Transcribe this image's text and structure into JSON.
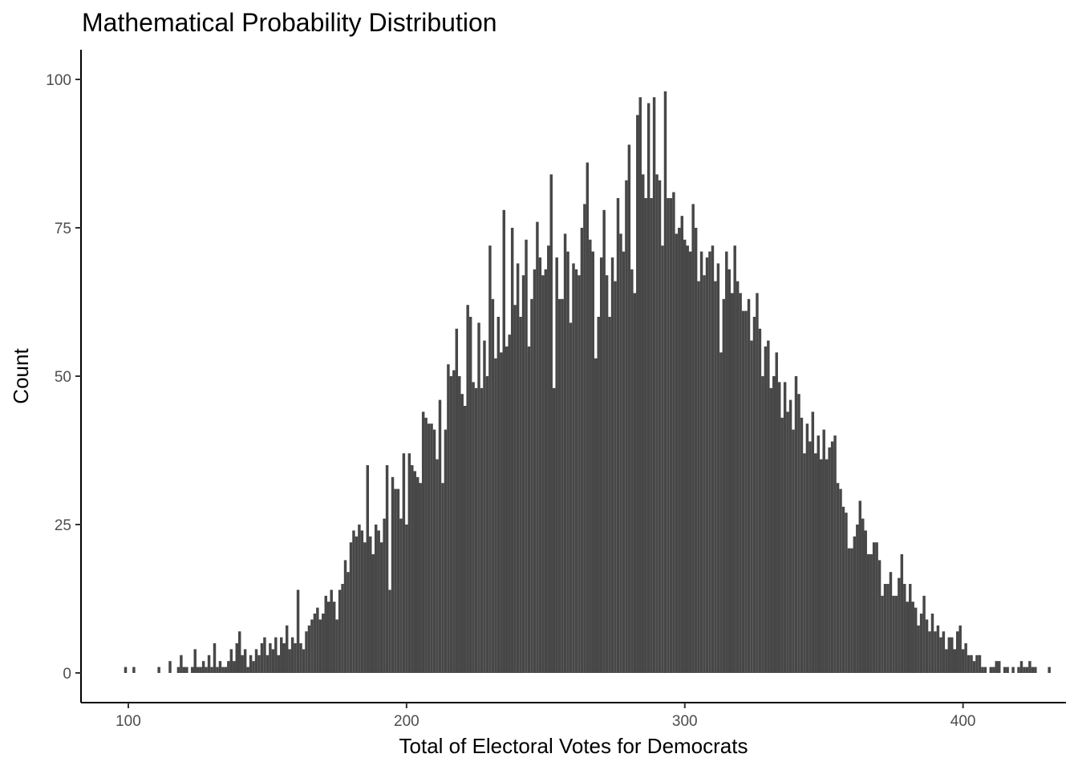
{
  "chart_data": {
    "type": "bar",
    "subtype": "histogram",
    "title": "Mathematical Probability Distribution",
    "xlabel": "Total of Electoral Votes for Democrats",
    "ylabel": "Count",
    "xlim": [
      83,
      437
    ],
    "ylim": [
      -5,
      105
    ],
    "xticks": [
      100,
      200,
      300,
      400
    ],
    "yticks": [
      0,
      25,
      50,
      75,
      100
    ],
    "grid": false,
    "legend": "none",
    "bar_color": "#474747",
    "points": [
      [
        99,
        1
      ],
      [
        102,
        1
      ],
      [
        111,
        1
      ],
      [
        115,
        2
      ],
      [
        118,
        1
      ],
      [
        119,
        3
      ],
      [
        120,
        1
      ],
      [
        121,
        1
      ],
      [
        123,
        1
      ],
      [
        124,
        4
      ],
      [
        125,
        1
      ],
      [
        126,
        1
      ],
      [
        127,
        2
      ],
      [
        128,
        1
      ],
      [
        129,
        3
      ],
      [
        130,
        1
      ],
      [
        131,
        5
      ],
      [
        132,
        1
      ],
      [
        133,
        2
      ],
      [
        134,
        1
      ],
      [
        135,
        1
      ],
      [
        136,
        2
      ],
      [
        137,
        4
      ],
      [
        138,
        2
      ],
      [
        139,
        5
      ],
      [
        140,
        7
      ],
      [
        141,
        3
      ],
      [
        142,
        4
      ],
      [
        143,
        1
      ],
      [
        144,
        3
      ],
      [
        145,
        2
      ],
      [
        146,
        4
      ],
      [
        147,
        3
      ],
      [
        148,
        5
      ],
      [
        149,
        6
      ],
      [
        150,
        3
      ],
      [
        151,
        5
      ],
      [
        152,
        4
      ],
      [
        153,
        6
      ],
      [
        154,
        3
      ],
      [
        155,
        6
      ],
      [
        156,
        5
      ],
      [
        157,
        8
      ],
      [
        158,
        4
      ],
      [
        159,
        6
      ],
      [
        160,
        5
      ],
      [
        161,
        14
      ],
      [
        162,
        5
      ],
      [
        163,
        4
      ],
      [
        164,
        7
      ],
      [
        165,
        8
      ],
      [
        166,
        9
      ],
      [
        167,
        10
      ],
      [
        168,
        11
      ],
      [
        169,
        9
      ],
      [
        170,
        10
      ],
      [
        171,
        13
      ],
      [
        172,
        12
      ],
      [
        173,
        14
      ],
      [
        174,
        12
      ],
      [
        175,
        9
      ],
      [
        176,
        14
      ],
      [
        177,
        15
      ],
      [
        178,
        19
      ],
      [
        179,
        17
      ],
      [
        180,
        22
      ],
      [
        181,
        24
      ],
      [
        182,
        23
      ],
      [
        183,
        25
      ],
      [
        184,
        24
      ],
      [
        185,
        22
      ],
      [
        186,
        35
      ],
      [
        187,
        23
      ],
      [
        188,
        20
      ],
      [
        189,
        25
      ],
      [
        190,
        24
      ],
      [
        191,
        22
      ],
      [
        192,
        26
      ],
      [
        193,
        35
      ],
      [
        194,
        14
      ],
      [
        195,
        33
      ],
      [
        196,
        31
      ],
      [
        197,
        31
      ],
      [
        198,
        26
      ],
      [
        199,
        37
      ],
      [
        200,
        25
      ],
      [
        201,
        37
      ],
      [
        202,
        35
      ],
      [
        203,
        34
      ],
      [
        204,
        33
      ],
      [
        205,
        32
      ],
      [
        206,
        44
      ],
      [
        207,
        43
      ],
      [
        208,
        42
      ],
      [
        209,
        42
      ],
      [
        210,
        41
      ],
      [
        211,
        36
      ],
      [
        212,
        46
      ],
      [
        213,
        32
      ],
      [
        214,
        41
      ],
      [
        215,
        52
      ],
      [
        216,
        50
      ],
      [
        217,
        51
      ],
      [
        218,
        58
      ],
      [
        219,
        50
      ],
      [
        220,
        47
      ],
      [
        221,
        45
      ],
      [
        222,
        62
      ],
      [
        223,
        60
      ],
      [
        224,
        49
      ],
      [
        225,
        48
      ],
      [
        226,
        59
      ],
      [
        227,
        48
      ],
      [
        228,
        56
      ],
      [
        229,
        50
      ],
      [
        230,
        72
      ],
      [
        231,
        63
      ],
      [
        232,
        53
      ],
      [
        233,
        60
      ],
      [
        234,
        54
      ],
      [
        235,
        78
      ],
      [
        236,
        55
      ],
      [
        237,
        57
      ],
      [
        238,
        75
      ],
      [
        239,
        62
      ],
      [
        240,
        69
      ],
      [
        241,
        60
      ],
      [
        242,
        67
      ],
      [
        243,
        73
      ],
      [
        244,
        55
      ],
      [
        245,
        63
      ],
      [
        246,
        68
      ],
      [
        247,
        76
      ],
      [
        248,
        70
      ],
      [
        249,
        67
      ],
      [
        250,
        68
      ],
      [
        251,
        72
      ],
      [
        252,
        84
      ],
      [
        253,
        48
      ],
      [
        254,
        70
      ],
      [
        255,
        63
      ],
      [
        256,
        63
      ],
      [
        257,
        74
      ],
      [
        258,
        71
      ],
      [
        259,
        59
      ],
      [
        260,
        69
      ],
      [
        261,
        68
      ],
      [
        262,
        67
      ],
      [
        263,
        75
      ],
      [
        264,
        79
      ],
      [
        265,
        86
      ],
      [
        266,
        73
      ],
      [
        267,
        71
      ],
      [
        268,
        53
      ],
      [
        269,
        60
      ],
      [
        270,
        70
      ],
      [
        271,
        78
      ],
      [
        272,
        67
      ],
      [
        273,
        60
      ],
      [
        274,
        70
      ],
      [
        275,
        66
      ],
      [
        276,
        80
      ],
      [
        277,
        74
      ],
      [
        278,
        71
      ],
      [
        279,
        83
      ],
      [
        280,
        89
      ],
      [
        281,
        68
      ],
      [
        282,
        64
      ],
      [
        283,
        94
      ],
      [
        284,
        97
      ],
      [
        285,
        84
      ],
      [
        286,
        80
      ],
      [
        287,
        96
      ],
      [
        288,
        80
      ],
      [
        289,
        97
      ],
      [
        290,
        84
      ],
      [
        291,
        83
      ],
      [
        292,
        72
      ],
      [
        293,
        98
      ],
      [
        294,
        80
      ],
      [
        295,
        80
      ],
      [
        296,
        81
      ],
      [
        297,
        74
      ],
      [
        298,
        75
      ],
      [
        299,
        77
      ],
      [
        300,
        73
      ],
      [
        301,
        72
      ],
      [
        302,
        71
      ],
      [
        303,
        79
      ],
      [
        304,
        75
      ],
      [
        305,
        66
      ],
      [
        306,
        71
      ],
      [
        307,
        67
      ],
      [
        308,
        70
      ],
      [
        309,
        71
      ],
      [
        310,
        72
      ],
      [
        311,
        66
      ],
      [
        312,
        69
      ],
      [
        313,
        54
      ],
      [
        314,
        63
      ],
      [
        315,
        71
      ],
      [
        316,
        68
      ],
      [
        317,
        64
      ],
      [
        318,
        72
      ],
      [
        319,
        66
      ],
      [
        320,
        64
      ],
      [
        321,
        61
      ],
      [
        322,
        61
      ],
      [
        323,
        63
      ],
      [
        324,
        56
      ],
      [
        325,
        60
      ],
      [
        326,
        64
      ],
      [
        327,
        58
      ],
      [
        328,
        50
      ],
      [
        329,
        55
      ],
      [
        330,
        56
      ],
      [
        331,
        48
      ],
      [
        332,
        50
      ],
      [
        333,
        54
      ],
      [
        334,
        49
      ],
      [
        335,
        43
      ],
      [
        336,
        49
      ],
      [
        337,
        44
      ],
      [
        338,
        46
      ],
      [
        339,
        41
      ],
      [
        340,
        50
      ],
      [
        341,
        47
      ],
      [
        342,
        43
      ],
      [
        343,
        37
      ],
      [
        344,
        42
      ],
      [
        345,
        39
      ],
      [
        346,
        44
      ],
      [
        347,
        37
      ],
      [
        348,
        40
      ],
      [
        349,
        36
      ],
      [
        350,
        41
      ],
      [
        351,
        36
      ],
      [
        352,
        38
      ],
      [
        353,
        39
      ],
      [
        354,
        40
      ],
      [
        355,
        32
      ],
      [
        356,
        31
      ],
      [
        357,
        28
      ],
      [
        358,
        27
      ],
      [
        359,
        21
      ],
      [
        360,
        21
      ],
      [
        361,
        23
      ],
      [
        362,
        25
      ],
      [
        363,
        29
      ],
      [
        364,
        26
      ],
      [
        365,
        24
      ],
      [
        366,
        20
      ],
      [
        367,
        20
      ],
      [
        368,
        22
      ],
      [
        369,
        22
      ],
      [
        370,
        19
      ],
      [
        371,
        13
      ],
      [
        372,
        15
      ],
      [
        373,
        15
      ],
      [
        374,
        17
      ],
      [
        375,
        13
      ],
      [
        376,
        13
      ],
      [
        377,
        16
      ],
      [
        378,
        20
      ],
      [
        379,
        15
      ],
      [
        380,
        12
      ],
      [
        381,
        15
      ],
      [
        382,
        12
      ],
      [
        383,
        11
      ],
      [
        384,
        8
      ],
      [
        385,
        10
      ],
      [
        386,
        13
      ],
      [
        387,
        9
      ],
      [
        388,
        7
      ],
      [
        389,
        10
      ],
      [
        390,
        7
      ],
      [
        391,
        8
      ],
      [
        392,
        6
      ],
      [
        393,
        7
      ],
      [
        394,
        4
      ],
      [
        395,
        6
      ],
      [
        396,
        6
      ],
      [
        397,
        4
      ],
      [
        398,
        7
      ],
      [
        399,
        8
      ],
      [
        400,
        4
      ],
      [
        401,
        5
      ],
      [
        402,
        3
      ],
      [
        403,
        3
      ],
      [
        404,
        2
      ],
      [
        405,
        3
      ],
      [
        406,
        3
      ],
      [
        407,
        1
      ],
      [
        408,
        1
      ],
      [
        410,
        1
      ],
      [
        411,
        1
      ],
      [
        412,
        2
      ],
      [
        413,
        2
      ],
      [
        415,
        1
      ],
      [
        416,
        1
      ],
      [
        418,
        1
      ],
      [
        420,
        1
      ],
      [
        421,
        2
      ],
      [
        422,
        1
      ],
      [
        423,
        1
      ],
      [
        424,
        2
      ],
      [
        425,
        1
      ],
      [
        426,
        1
      ],
      [
        431,
        1
      ]
    ]
  }
}
